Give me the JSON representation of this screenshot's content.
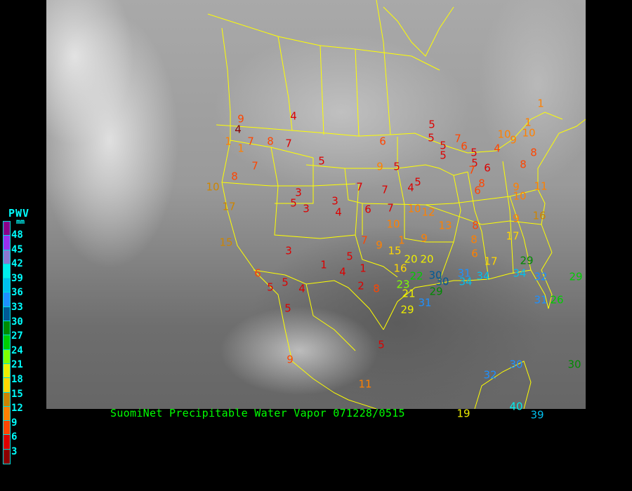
{
  "caption": "SuomiNet Precipitable Water Vapor 071228/0515",
  "legend": {
    "title": "PWV",
    "unit": "mm",
    "ticks": [
      "48",
      "45",
      "42",
      "39",
      "36",
      "33",
      "30",
      "27",
      "24",
      "21",
      "18",
      "15",
      "12",
      "9",
      "6",
      "3"
    ],
    "colors": [
      "#8b008b",
      "#9a30f0",
      "#8a78d0",
      "#00eeee",
      "#00bfee",
      "#1e90ff",
      "#005a96",
      "#008b00",
      "#00cd00",
      "#7fff00",
      "#eeee00",
      "#ffd700",
      "#cd8500",
      "#ff8000",
      "#ff4500",
      "#dd0000",
      "#8b0000"
    ]
  },
  "map": {
    "basemap": "satellite-ir-grayscale",
    "border_color": "#ffff00"
  },
  "stations": [
    {
      "v": "4",
      "c": "#dd0000"
    },
    {
      "v": "9",
      "c": "#ff4500"
    },
    {
      "v": "4",
      "c": "#8b0000"
    },
    {
      "v": "1",
      "c": "#ff8000"
    },
    {
      "v": "1",
      "c": "#ff8000"
    },
    {
      "v": "7",
      "c": "#ff4500"
    },
    {
      "v": "8",
      "c": "#ff4500"
    },
    {
      "v": "7",
      "c": "#dd0000"
    },
    {
      "v": "7",
      "c": "#ff4500"
    },
    {
      "v": "8",
      "c": "#ff4500"
    },
    {
      "v": "10",
      "c": "#cd8500"
    },
    {
      "v": "17",
      "c": "#cd8500"
    },
    {
      "v": "5",
      "c": "#dd0000"
    },
    {
      "v": "6",
      "c": "#ff4500"
    },
    {
      "v": "9",
      "c": "#ff8000"
    },
    {
      "v": "5",
      "c": "#dd0000"
    },
    {
      "v": "7",
      "c": "#dd0000"
    },
    {
      "v": "7",
      "c": "#dd0000"
    },
    {
      "v": "4",
      "c": "#dd0000"
    },
    {
      "v": "5",
      "c": "#dd0000"
    },
    {
      "v": "3",
      "c": "#dd0000"
    },
    {
      "v": "5",
      "c": "#dd0000"
    },
    {
      "v": "3",
      "c": "#dd0000"
    },
    {
      "v": "3",
      "c": "#dd0000"
    },
    {
      "v": "4",
      "c": "#dd0000"
    },
    {
      "v": "6",
      "c": "#dd0000"
    },
    {
      "v": "7",
      "c": "#dd0000"
    },
    {
      "v": "10",
      "c": "#ff8000"
    },
    {
      "v": "12",
      "c": "#ff8000"
    },
    {
      "v": "10",
      "c": "#ff8000"
    },
    {
      "v": "7",
      "c": "#ff4500"
    },
    {
      "v": "9",
      "c": "#ff8000"
    },
    {
      "v": "1",
      "c": "#ff8000"
    },
    {
      "v": "9",
      "c": "#ff8000"
    },
    {
      "v": "13",
      "c": "#ff8000"
    },
    {
      "v": "15",
      "c": "#ffd700"
    },
    {
      "v": "20",
      "c": "#eeee00"
    },
    {
      "v": "20",
      "c": "#eeee00"
    },
    {
      "v": "16",
      "c": "#ffd700"
    },
    {
      "v": "22",
      "c": "#00cd00"
    },
    {
      "v": "23",
      "c": "#7fff00"
    },
    {
      "v": "30",
      "c": "#005a96"
    },
    {
      "v": "30",
      "c": "#005a96"
    },
    {
      "v": "31",
      "c": "#1e90ff"
    },
    {
      "v": "34",
      "c": "#00bfee"
    },
    {
      "v": "34",
      "c": "#00bfee"
    },
    {
      "v": "21",
      "c": "#eeee00"
    },
    {
      "v": "29",
      "c": "#008b00"
    },
    {
      "v": "31",
      "c": "#1e90ff"
    },
    {
      "v": "29",
      "c": "#eeee00"
    },
    {
      "v": "8",
      "c": "#ff8000"
    },
    {
      "v": "6",
      "c": "#ff8000"
    },
    {
      "v": "17",
      "c": "#ffd700"
    },
    {
      "v": "17",
      "c": "#ffd700"
    },
    {
      "v": "34",
      "c": "#00bfee"
    },
    {
      "v": "29",
      "c": "#008b00"
    },
    {
      "v": "32",
      "c": "#1e90ff"
    },
    {
      "v": "31",
      "c": "#1e90ff"
    },
    {
      "v": "26",
      "c": "#00cd00"
    },
    {
      "v": "29",
      "c": "#00cd00"
    },
    {
      "v": "30",
      "c": "#008b00"
    },
    {
      "v": "30",
      "c": "#1e90ff"
    },
    {
      "v": "32",
      "c": "#1e90ff"
    },
    {
      "v": "40",
      "c": "#00eeee"
    },
    {
      "v": "39",
      "c": "#00bfee"
    },
    {
      "v": "19",
      "c": "#eeee00"
    },
    {
      "v": "11",
      "c": "#ff8000"
    },
    {
      "v": "5",
      "c": "#dd0000"
    },
    {
      "v": "9",
      "c": "#ff4500"
    },
    {
      "v": "5",
      "c": "#dd0000"
    },
    {
      "v": "5",
      "c": "#dd0000"
    },
    {
      "v": "5",
      "c": "#dd0000"
    },
    {
      "v": "4",
      "c": "#dd0000"
    },
    {
      "v": "6",
      "c": "#ff4500"
    },
    {
      "v": "15",
      "c": "#cd8500"
    },
    {
      "v": "3",
      "c": "#dd0000"
    },
    {
      "v": "1",
      "c": "#dd0000"
    },
    {
      "v": "4",
      "c": "#dd0000"
    },
    {
      "v": "5",
      "c": "#dd0000"
    },
    {
      "v": "1",
      "c": "#dd0000"
    },
    {
      "v": "2",
      "c": "#dd0000"
    },
    {
      "v": "8",
      "c": "#ff4500"
    },
    {
      "v": "5",
      "c": "#dd0000"
    },
    {
      "v": "5",
      "c": "#dd0000"
    },
    {
      "v": "5",
      "c": "#dd0000"
    },
    {
      "v": "5",
      "c": "#dd0000"
    },
    {
      "v": "7",
      "c": "#ff4500"
    },
    {
      "v": "6",
      "c": "#ff4500"
    },
    {
      "v": "5",
      "c": "#dd0000"
    },
    {
      "v": "5",
      "c": "#dd0000"
    },
    {
      "v": "7",
      "c": "#ff4500"
    },
    {
      "v": "6",
      "c": "#dd0000"
    },
    {
      "v": "8",
      "c": "#ff4500"
    },
    {
      "v": "6",
      "c": "#ff4500"
    },
    {
      "v": "4",
      "c": "#ff4500"
    },
    {
      "v": "10",
      "c": "#ff8000"
    },
    {
      "v": "9",
      "c": "#ff8000"
    },
    {
      "v": "1",
      "c": "#ff8000"
    },
    {
      "v": "10",
      "c": "#ff8000"
    },
    {
      "v": "1",
      "c": "#ff8000"
    },
    {
      "v": "8",
      "c": "#ff4500"
    },
    {
      "v": "8",
      "c": "#ff4500"
    },
    {
      "v": "9",
      "c": "#ff8000"
    },
    {
      "v": "11",
      "c": "#ff8000"
    },
    {
      "v": "10",
      "c": "#ff8000"
    },
    {
      "v": "9",
      "c": "#ff8000"
    },
    {
      "v": "16",
      "c": "#cd8500"
    },
    {
      "v": "8",
      "c": "#ff4500"
    }
  ]
}
